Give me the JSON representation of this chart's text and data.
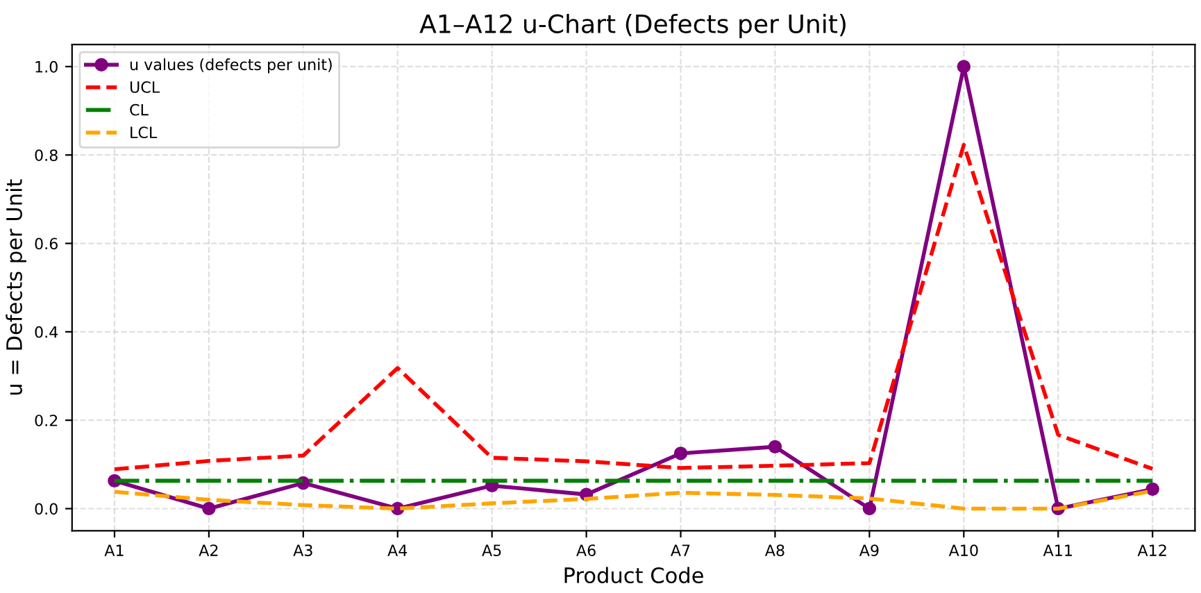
{
  "chart_data": {
    "type": "line",
    "title": "A1–A12 u-Chart (Defects per Unit)",
    "xlabel": "Product Code",
    "ylabel": "u = Defects per Unit",
    "categories": [
      "A1",
      "A2",
      "A3",
      "A4",
      "A5",
      "A6",
      "A7",
      "A8",
      "A9",
      "A10",
      "A11",
      "A12"
    ],
    "series": [
      {
        "name": "u values (defects per unit)",
        "color": "#800080",
        "marker": "circle",
        "line_style": "solid",
        "values": [
          0.063,
          0,
          0.058,
          0,
          0.052,
          0.032,
          0.125,
          0.14,
          0,
          1.0,
          0,
          0.044
        ]
      },
      {
        "name": "UCL",
        "color": "#ff0000",
        "marker": "none",
        "line_style": "dashed",
        "values": [
          0.089,
          0.108,
          0.12,
          0.318,
          0.115,
          0.107,
          0.092,
          0.097,
          0.103,
          0.823,
          0.167,
          0.09
        ]
      },
      {
        "name": "CL",
        "color": "#008000",
        "marker": "none",
        "line_style": "dashdot",
        "values": [
          0.063,
          0.063,
          0.063,
          0.063,
          0.063,
          0.063,
          0.063,
          0.063,
          0.063,
          0.063,
          0.063,
          0.063
        ]
      },
      {
        "name": "LCL",
        "color": "#ffa500",
        "marker": "none",
        "line_style": "dashed",
        "values": [
          0.038,
          0.02,
          0.008,
          0,
          0.012,
          0.022,
          0.036,
          0.031,
          0.023,
          0,
          0,
          0.04
        ]
      }
    ],
    "ylim": [
      -0.05,
      1.05
    ],
    "yticks": [
      {
        "value": 0,
        "label": "0.0"
      },
      {
        "value": 0.2,
        "label": "0.2"
      },
      {
        "value": 0.4,
        "label": "0.4"
      },
      {
        "value": 0.6,
        "label": "0.6"
      },
      {
        "value": 0.8,
        "label": "0.8"
      },
      {
        "value": 1.0,
        "label": "1.0"
      }
    ],
    "grid": true,
    "legend": "top left"
  }
}
